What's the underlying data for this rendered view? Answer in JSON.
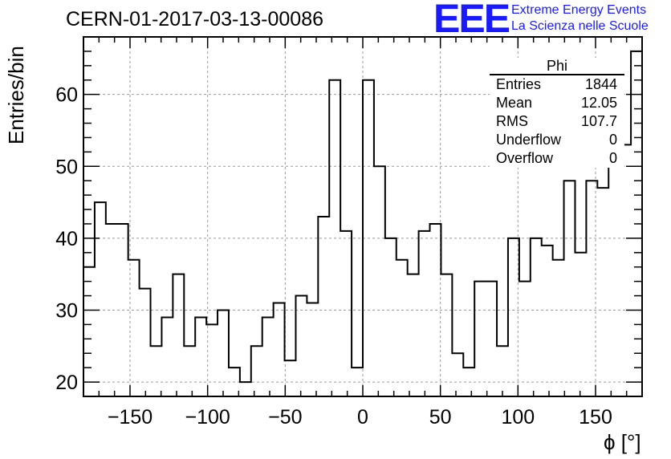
{
  "header": {
    "title": "CERN-01-2017-03-13-00086",
    "logo": "EEE",
    "logo_line1": "Extreme Energy Events",
    "logo_line2": "La Scienza nelle Scuole"
  },
  "stats": {
    "name": "Phi",
    "rows": [
      {
        "label": "Entries",
        "value": "1844"
      },
      {
        "label": "Mean",
        "value": "12.05"
      },
      {
        "label": "RMS",
        "value": "107.7"
      },
      {
        "label": "Underflow",
        "value": "0"
      },
      {
        "label": "Overflow",
        "value": "0"
      }
    ]
  },
  "chart_data": {
    "type": "bar",
    "title": "CERN-01-2017-03-13-00086",
    "xlabel": "ϕ [°]",
    "ylabel": "Entries/bin",
    "xlim": [
      -180,
      180
    ],
    "ylim": [
      18,
      68
    ],
    "bin_width": 7.2,
    "x_ticks": [
      -150,
      -100,
      -50,
      0,
      50,
      100,
      150
    ],
    "x_tick_labels": [
      "−150",
      "−100",
      "−50",
      "0",
      "50",
      "100",
      "150"
    ],
    "y_ticks": [
      20,
      30,
      40,
      50,
      60
    ],
    "grid": true,
    "values": [
      36,
      45,
      42,
      42,
      37,
      33,
      25,
      29,
      35,
      25,
      29,
      28,
      30,
      22,
      20,
      25,
      29,
      31,
      23,
      32,
      31,
      43,
      62,
      41,
      22,
      62,
      50,
      40,
      37,
      35,
      41,
      42,
      35,
      24,
      22,
      34,
      34,
      25,
      40,
      34,
      40,
      39,
      37,
      48,
      38,
      48,
      47,
      56,
      53,
      66
    ]
  }
}
